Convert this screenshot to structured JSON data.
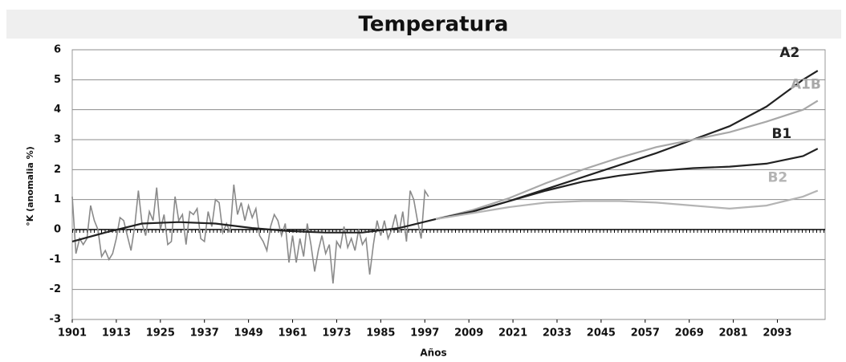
{
  "chart_data": {
    "type": "line",
    "title": "Temperatura",
    "x_label": "Años",
    "y_label": "°K (anomalia %)",
    "xlim": [
      1901,
      2106
    ],
    "xticks": [
      1901,
      1913,
      1925,
      1937,
      1949,
      1961,
      1973,
      1985,
      1997,
      2009,
      2021,
      2033,
      2045,
      2057,
      2069,
      2081,
      2093
    ],
    "ylim": [
      -3,
      6
    ],
    "yticks": [
      -3,
      -2,
      -1,
      0,
      1,
      2,
      3,
      4,
      5,
      6
    ],
    "grid": true,
    "series": [
      {
        "color": "#8a8a8a",
        "x": [
          1901,
          1902,
          1903,
          1904,
          1905,
          1906,
          1907,
          1908,
          1909,
          1910,
          1911,
          1912,
          1913,
          1914,
          1915,
          1916,
          1917,
          1918,
          1919,
          1920,
          1921,
          1922,
          1923,
          1924,
          1925,
          1926,
          1927,
          1928,
          1929,
          1930,
          1931,
          1932,
          1933,
          1934,
          1935,
          1936,
          1937,
          1938,
          1939,
          1940,
          1941,
          1942,
          1943,
          1944,
          1945,
          1946,
          1947,
          1948,
          1949,
          1950,
          1951,
          1952,
          1953,
          1954,
          1955,
          1956,
          1957,
          1958,
          1959,
          1960,
          1961,
          1962,
          1963,
          1964,
          1965,
          1966,
          1967,
          1968,
          1969,
          1970,
          1971,
          1972,
          1973,
          1974,
          1975,
          1976,
          1977,
          1978,
          1979,
          1980,
          1981,
          1982,
          1983,
          1984,
          1985,
          1986,
          1987,
          1988,
          1989,
          1990,
          1991,
          1992,
          1993,
          1994,
          1995,
          1996,
          1997,
          1998
        ],
        "values": [
          1.1,
          -0.8,
          -0.3,
          -0.5,
          -0.3,
          0.8,
          0.3,
          0.0,
          -0.9,
          -0.7,
          -1.0,
          -0.8,
          -0.3,
          0.4,
          0.3,
          -0.2,
          -0.7,
          0.1,
          1.3,
          0.2,
          -0.2,
          0.6,
          0.3,
          1.4,
          0.0,
          0.5,
          -0.5,
          -0.4,
          1.1,
          0.3,
          0.5,
          -0.5,
          0.6,
          0.5,
          0.7,
          -0.3,
          -0.4,
          0.6,
          0.1,
          1.0,
          0.9,
          -0.1,
          0.2,
          -0.1,
          1.5,
          0.5,
          0.9,
          0.3,
          0.8,
          0.4,
          0.7,
          -0.2,
          -0.4,
          -0.7,
          0.1,
          0.5,
          0.3,
          -0.2,
          0.2,
          -1.1,
          -0.2,
          -1.1,
          -0.3,
          -0.9,
          0.2,
          -0.5,
          -1.4,
          -0.7,
          -0.2,
          -0.8,
          -0.5,
          -1.8,
          -0.4,
          -0.6,
          0.1,
          -0.6,
          -0.3,
          -0.7,
          0.0,
          -0.5,
          -0.3,
          -1.5,
          -0.5,
          0.3,
          -0.2,
          0.3,
          -0.3,
          0.0,
          0.5,
          -0.1,
          0.6,
          -0.4,
          1.3,
          1.0,
          0.3,
          -0.3,
          1.3,
          1.1
        ]
      },
      {
        "color": "#222222",
        "x": [
          1901,
          1910,
          1920,
          1930,
          1940,
          1950,
          1960,
          1970,
          1980,
          1990,
          2000
        ],
        "values": [
          -0.4,
          -0.1,
          0.2,
          0.25,
          0.2,
          0.05,
          -0.05,
          -0.1,
          -0.1,
          0.05,
          0.35
        ]
      },
      {
        "name": "A2",
        "color": "#222222",
        "x": [
          2000,
          2010,
          2020,
          2030,
          2040,
          2050,
          2060,
          2070,
          2080,
          2090,
          2100,
          2104
        ],
        "values": [
          0.35,
          0.6,
          0.95,
          1.35,
          1.75,
          2.15,
          2.55,
          3.0,
          3.45,
          4.1,
          5.0,
          5.3
        ]
      },
      {
        "name": "A1B",
        "color": "#a8a8a8",
        "x": [
          2000,
          2010,
          2020,
          2030,
          2040,
          2050,
          2060,
          2070,
          2080,
          2090,
          2100,
          2104
        ],
        "values": [
          0.35,
          0.65,
          1.05,
          1.55,
          2.0,
          2.4,
          2.75,
          3.0,
          3.25,
          3.6,
          4.0,
          4.3
        ]
      },
      {
        "name": "B1",
        "color": "#222222",
        "x": [
          2000,
          2010,
          2020,
          2030,
          2040,
          2050,
          2060,
          2070,
          2080,
          2090,
          2100,
          2104
        ],
        "values": [
          0.35,
          0.6,
          0.95,
          1.3,
          1.6,
          1.8,
          1.95,
          2.05,
          2.1,
          2.2,
          2.45,
          2.7
        ]
      },
      {
        "name": "B2",
        "color": "#b4b4b4",
        "x": [
          2000,
          2010,
          2020,
          2030,
          2040,
          2050,
          2060,
          2070,
          2080,
          2090,
          2100,
          2104
        ],
        "values": [
          0.35,
          0.55,
          0.75,
          0.9,
          0.95,
          0.95,
          0.9,
          0.8,
          0.7,
          0.8,
          1.1,
          1.3
        ]
      }
    ]
  }
}
